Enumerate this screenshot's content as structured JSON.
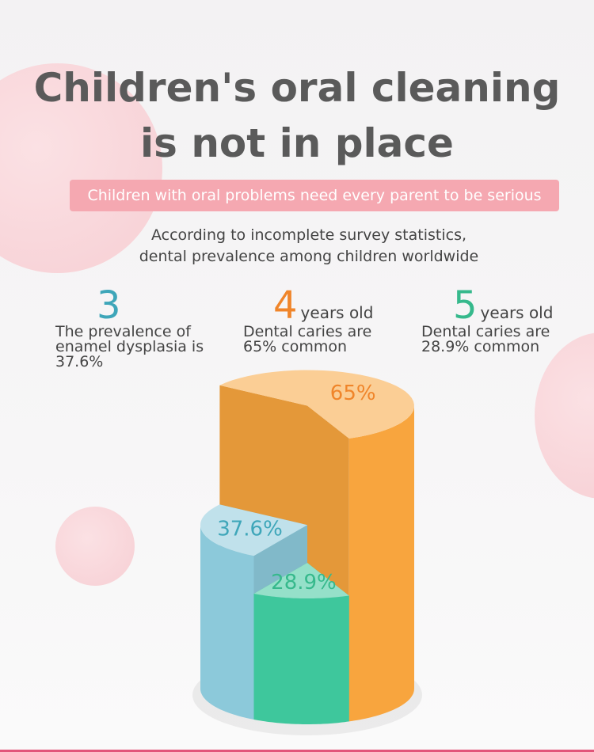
{
  "header": {
    "title": [
      "Children's oral cleaning",
      "is not in place"
    ]
  },
  "banner": "Children with oral problems need every parent to be serious",
  "note": [
    "According to incomplete survey statistics,",
    "dental prevalence among children worldwide"
  ],
  "stats": [
    {
      "age": 3,
      "lines": [
        "The prevalence of",
        "enamel dysplasia is",
        "37.6%"
      ]
    },
    {
      "age": 4,
      "unit": "years old",
      "lines": [
        "Dental caries are",
        "65% common"
      ]
    },
    {
      "age": 5,
      "unit": "years old",
      "lines": [
        "Dental caries are",
        "28.9% common"
      ]
    }
  ],
  "chart_data": {
    "type": "cylinder",
    "values": [
      37.6,
      65,
      28.9
    ],
    "value_labels": [
      "37.6%",
      "65%",
      "28.9%"
    ],
    "colors": [
      "#8cc9da",
      "#f8a53e",
      "#3ec79c"
    ],
    "label_colors": [
      "#3ea6b9",
      "#f0852a",
      "#36b98c"
    ]
  }
}
